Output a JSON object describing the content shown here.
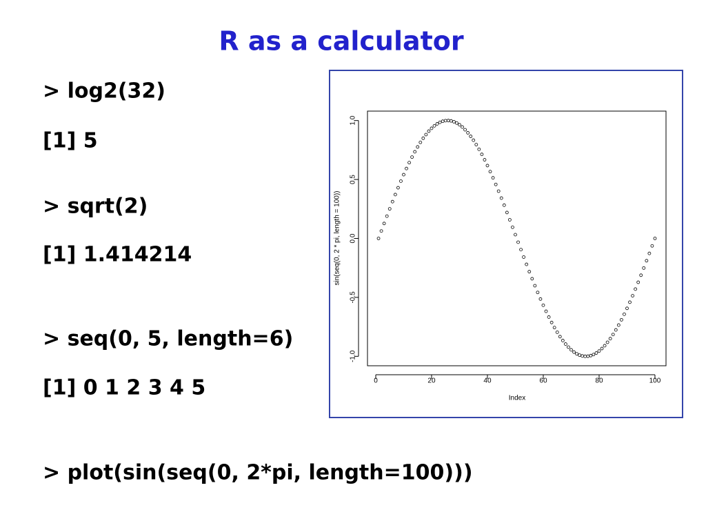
{
  "title": "R as a calculator",
  "lines": [
    "> log2(32)",
    "[1] 5",
    "> sqrt(2)",
    "[1] 1.414214",
    "> seq(0, 5, length=6)",
    "[1] 0 1 2 3 4 5",
    "> plot(sin(seq(0, 2*pi, length=100)))"
  ],
  "chart_data": {
    "type": "scatter",
    "x_label": "Index",
    "y_label": "sin(seq(0, 2 * pi, length = 100))",
    "x": [
      1,
      2,
      3,
      4,
      5,
      6,
      7,
      8,
      9,
      10,
      11,
      12,
      13,
      14,
      15,
      16,
      17,
      18,
      19,
      20,
      21,
      22,
      23,
      24,
      25,
      26,
      27,
      28,
      29,
      30,
      31,
      32,
      33,
      34,
      35,
      36,
      37,
      38,
      39,
      40,
      41,
      42,
      43,
      44,
      45,
      46,
      47,
      48,
      49,
      50,
      51,
      52,
      53,
      54,
      55,
      56,
      57,
      58,
      59,
      60,
      61,
      62,
      63,
      64,
      65,
      66,
      67,
      68,
      69,
      70,
      71,
      72,
      73,
      74,
      75,
      76,
      77,
      78,
      79,
      80,
      81,
      82,
      83,
      84,
      85,
      86,
      87,
      88,
      89,
      90,
      91,
      92,
      93,
      94,
      95,
      96,
      97,
      98,
      99,
      100
    ],
    "values": [
      0,
      0.063,
      0.127,
      0.189,
      0.251,
      0.312,
      0.372,
      0.43,
      0.486,
      0.541,
      0.593,
      0.643,
      0.69,
      0.735,
      0.776,
      0.815,
      0.85,
      0.881,
      0.91,
      0.934,
      0.955,
      0.972,
      0.985,
      0.994,
      0.999,
      1.0,
      0.997,
      0.99,
      0.979,
      0.964,
      0.945,
      0.922,
      0.896,
      0.866,
      0.833,
      0.796,
      0.756,
      0.713,
      0.667,
      0.618,
      0.567,
      0.514,
      0.458,
      0.401,
      0.342,
      0.282,
      0.22,
      0.158,
      0.095,
      0.032,
      -0.032,
      -0.095,
      -0.158,
      -0.22,
      -0.282,
      -0.342,
      -0.401,
      -0.458,
      -0.514,
      -0.567,
      -0.618,
      -0.667,
      -0.713,
      -0.756,
      -0.796,
      -0.833,
      -0.866,
      -0.896,
      -0.922,
      -0.945,
      -0.964,
      -0.979,
      -0.99,
      -0.997,
      -1.0,
      -0.999,
      -0.994,
      -0.985,
      -0.972,
      -0.955,
      -0.934,
      -0.91,
      -0.881,
      -0.85,
      -0.815,
      -0.776,
      -0.735,
      -0.69,
      -0.643,
      -0.593,
      -0.541,
      -0.486,
      -0.43,
      -0.372,
      -0.312,
      -0.251,
      -0.189,
      -0.127,
      -0.063,
      0
    ],
    "color": "#000000",
    "xlim": [
      -2.96,
      103.96
    ],
    "ylim": [
      -1.08,
      1.08
    ],
    "xticks": [
      0,
      20,
      40,
      60,
      80,
      100
    ],
    "yticks": [
      {
        "value": -1,
        "label": "-1.0"
      },
      {
        "value": -0.5,
        "label": "-0.5"
      },
      {
        "value": 0,
        "label": "0.0"
      },
      {
        "value": 0.5,
        "label": "0.5"
      },
      {
        "value": 1,
        "label": "1.0"
      }
    ]
  }
}
